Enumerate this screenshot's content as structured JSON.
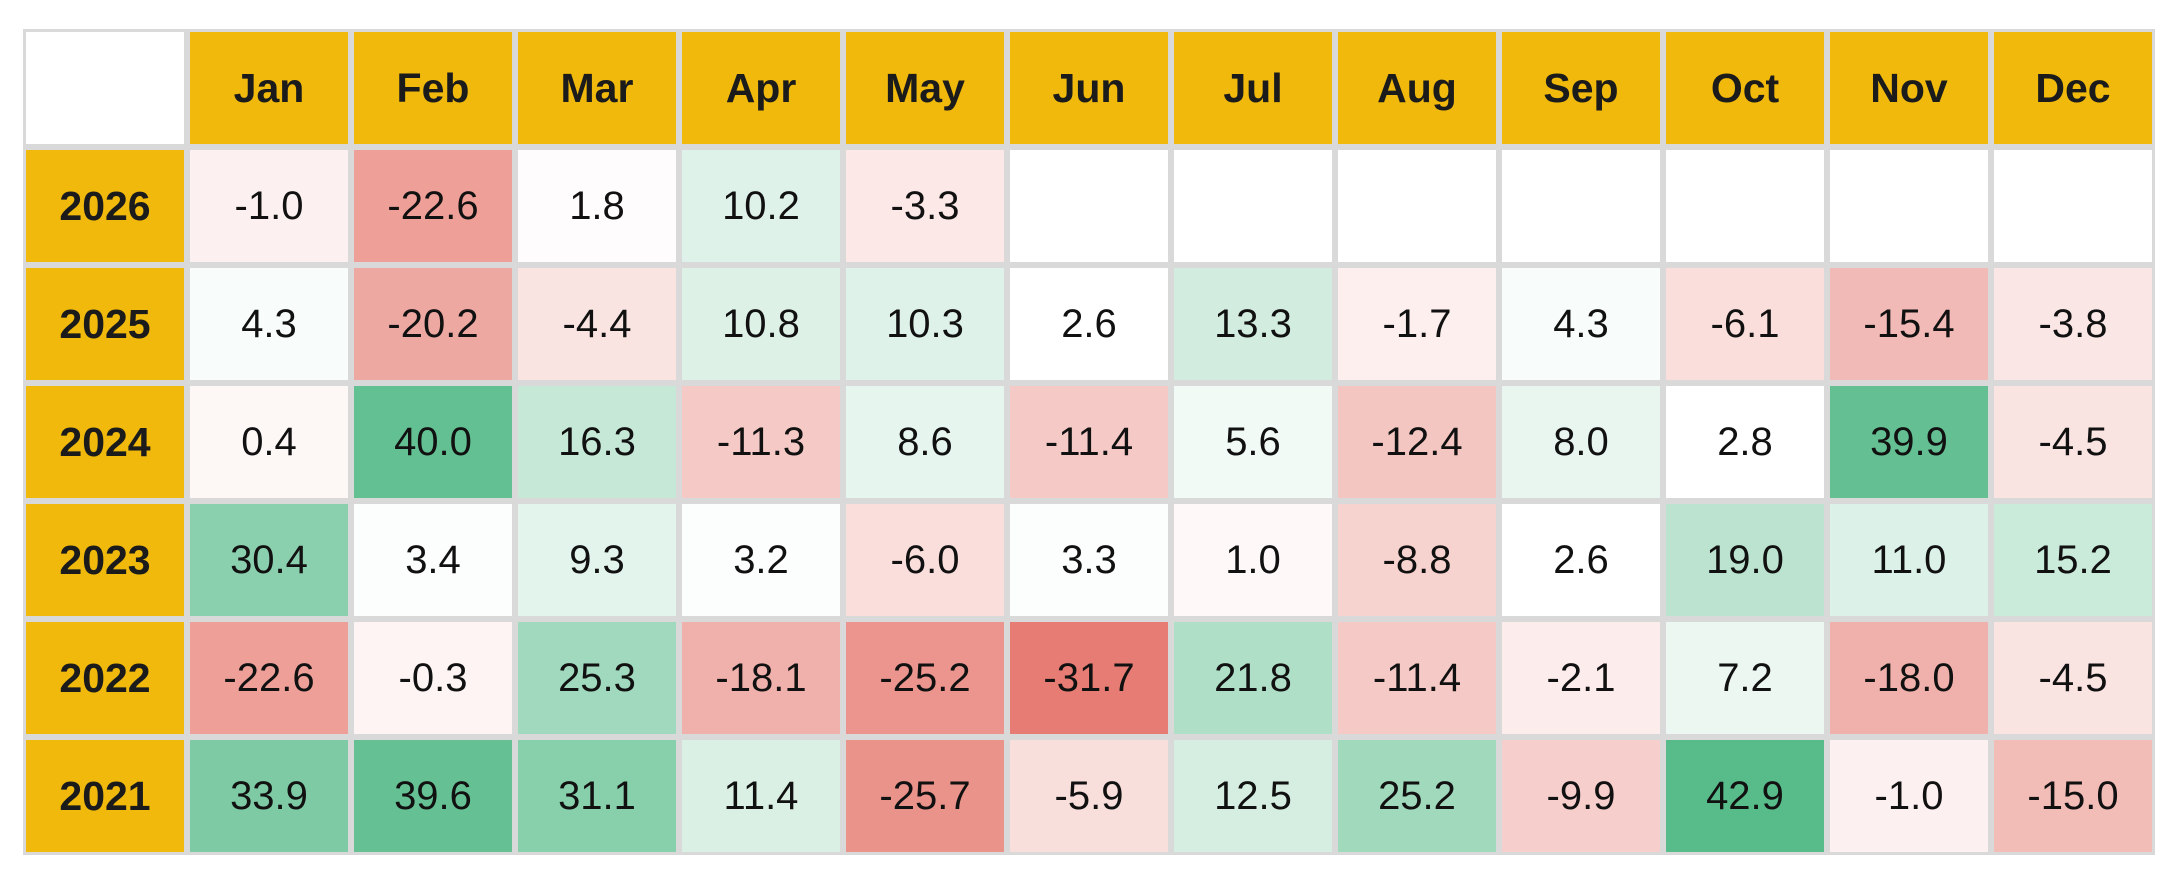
{
  "colors": {
    "header_bg": "#f0b90b",
    "grid_line": "#d9d9d9",
    "positive_max": "#57bb8a",
    "negative_max": "#e67c73",
    "neutral": "#ffffff"
  },
  "chart_data": {
    "type": "heatmap",
    "title": "",
    "xlabel": "",
    "ylabel": "",
    "columns": [
      "Jan",
      "Feb",
      "Mar",
      "Apr",
      "May",
      "Jun",
      "Jul",
      "Aug",
      "Sep",
      "Oct",
      "Nov",
      "Dec"
    ],
    "rows": [
      "2026",
      "2025",
      "2024",
      "2023",
      "2022",
      "2021"
    ],
    "values": [
      [
        -1.0,
        -22.6,
        1.8,
        10.2,
        -3.3,
        null,
        null,
        null,
        null,
        null,
        null,
        null
      ],
      [
        4.3,
        -20.2,
        -4.4,
        10.8,
        10.3,
        2.6,
        13.3,
        -1.7,
        4.3,
        -6.1,
        -15.4,
        -3.8
      ],
      [
        0.4,
        40.0,
        16.3,
        -11.3,
        8.6,
        -11.4,
        5.6,
        -12.4,
        8.0,
        2.8,
        39.9,
        -4.5
      ],
      [
        30.4,
        3.4,
        9.3,
        3.2,
        -6.0,
        3.3,
        1.0,
        -8.8,
        2.6,
        19.0,
        11.0,
        15.2
      ],
      [
        -22.6,
        -0.3,
        25.3,
        -18.1,
        -25.2,
        -31.7,
        21.8,
        -11.4,
        -2.1,
        7.2,
        -18.0,
        -4.5
      ],
      [
        33.9,
        39.6,
        31.1,
        11.4,
        -25.7,
        -5.9,
        12.5,
        25.2,
        -9.9,
        42.9,
        -1.0,
        -15.0
      ]
    ],
    "labels": [
      [
        "-1.0",
        "-22.6",
        "1.8",
        "10.2",
        "-3.3",
        "",
        "",
        "",
        "",
        "",
        "",
        ""
      ],
      [
        "4.3",
        "-20.2",
        "-4.4",
        "10.8",
        "10.3",
        "2.6",
        "13.3",
        "-1.7",
        "4.3",
        "-6.1",
        "-15.4",
        "-3.8"
      ],
      [
        "0.4",
        "40.0",
        "16.3",
        "-11.3",
        "8.6",
        "-11.4",
        "5.6",
        "-12.4",
        "8.0",
        "2.8",
        "39.9",
        "-4.5"
      ],
      [
        "30.4",
        "3.4",
        "9.3",
        "3.2",
        "-6.0",
        "3.3",
        "1.0",
        "-8.8",
        "2.6",
        "19.0",
        "11.0",
        "15.2"
      ],
      [
        "-22.6",
        "-0.3",
        "25.3",
        "-18.1",
        "-25.2",
        "-31.7",
        "21.8",
        "-11.4",
        "-2.1",
        "7.2",
        "-18.0",
        "-4.5"
      ],
      [
        "33.9",
        "39.6",
        "31.1",
        "11.4",
        "-25.7",
        "-5.9",
        "12.5",
        "25.2",
        "-9.9",
        "42.9",
        "-1.0",
        "-15.0"
      ]
    ],
    "color_scale": {
      "min_value": -31.7,
      "max_value": 42.9,
      "midpoint": 2.6
    }
  }
}
